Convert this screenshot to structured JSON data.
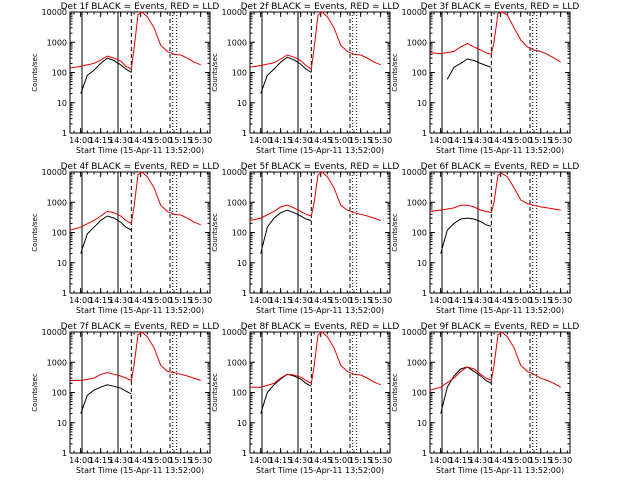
{
  "figure": {
    "x_axis_label": "Start Time (15-Apr-11 13:52:00)",
    "y_axis_label": "Counts/sec"
  },
  "chart_data": [
    {
      "type": "line",
      "title": "Det 1f BLACK = Events, RED = LLD",
      "xlabel": "Start Time (15-Apr-11 13:52:00)",
      "ylabel": "Counts/sec",
      "ylog": true,
      "xlim": [
        "13:52",
        "15:37"
      ],
      "ylim": [
        1,
        10000
      ],
      "x_ticks": [
        "14:00",
        "14:15",
        "14:30",
        "14:45",
        "15:00",
        "15:15",
        "15:30"
      ],
      "y_ticks": [
        "1",
        "10",
        "100",
        "1000",
        "10000"
      ],
      "series": [
        {
          "name": "Events",
          "color": "#000000",
          "x": [
            "14:00",
            "14:05",
            "14:10",
            "14:15",
            "14:20",
            "14:25",
            "14:30",
            "14:34",
            "14:38"
          ],
          "y": [
            20,
            80,
            120,
            200,
            300,
            250,
            180,
            130,
            100
          ]
        },
        {
          "name": "LLD",
          "color": "#e00000",
          "x": [
            "13:52",
            "14:00",
            "14:10",
            "14:15",
            "14:20",
            "14:25",
            "14:30",
            "14:34",
            "14:38",
            "14:40",
            "14:43",
            "14:46",
            "14:50",
            "14:55",
            "15:00",
            "15:05",
            "15:10",
            "15:15",
            "15:20",
            "15:25",
            "15:30"
          ],
          "y": [
            140,
            160,
            200,
            260,
            350,
            300,
            240,
            160,
            130,
            600,
            8000,
            10000,
            7000,
            3000,
            800,
            500,
            400,
            380,
            300,
            220,
            180
          ]
        }
      ]
    },
    {
      "type": "line",
      "title": "Det 2f BLACK = Events, RED = LLD",
      "xlabel": "Start Time (15-Apr-11 13:52:00)",
      "ylabel": "Counts/sec",
      "ylog": true,
      "xlim": [
        "13:52",
        "15:37"
      ],
      "ylim": [
        1,
        10000
      ],
      "x_ticks": [
        "14:00",
        "14:15",
        "14:30",
        "14:45",
        "15:00",
        "15:15",
        "15:30"
      ],
      "y_ticks": [
        "1",
        "10",
        "100",
        "1000",
        "10000"
      ],
      "series": [
        {
          "name": "Events",
          "color": "#000000",
          "x": [
            "14:00",
            "14:05",
            "14:10",
            "14:15",
            "14:20",
            "14:25",
            "14:30",
            "14:34",
            "14:38"
          ],
          "y": [
            20,
            80,
            130,
            220,
            320,
            260,
            190,
            130,
            100
          ]
        },
        {
          "name": "LLD",
          "color": "#e00000",
          "x": [
            "13:52",
            "14:00",
            "14:10",
            "14:15",
            "14:20",
            "14:25",
            "14:30",
            "14:34",
            "14:38",
            "14:40",
            "14:43",
            "14:46",
            "14:50",
            "14:55",
            "15:00",
            "15:05",
            "15:10",
            "15:15",
            "15:20",
            "15:25",
            "15:30"
          ],
          "y": [
            150,
            170,
            210,
            280,
            380,
            320,
            250,
            170,
            130,
            600,
            8000,
            10000,
            7000,
            3000,
            800,
            500,
            400,
            380,
            300,
            220,
            180
          ]
        }
      ]
    },
    {
      "type": "line",
      "title": "Det 3f BLACK = Events, RED = LLD",
      "xlabel": "Start Time (15-Apr-11 13:52:00)",
      "ylabel": "Counts/sec",
      "ylog": true,
      "xlim": [
        "13:52",
        "15:37"
      ],
      "ylim": [
        1,
        10000
      ],
      "x_ticks": [
        "14:00",
        "14:15",
        "14:30",
        "14:45",
        "15:00",
        "15:15",
        "15:30"
      ],
      "y_ticks": [
        "1",
        "10",
        "100",
        "1000",
        "10000"
      ],
      "series": [
        {
          "name": "Events",
          "color": "#000000",
          "x": [
            "14:05",
            "14:10",
            "14:15",
            "14:20",
            "14:25",
            "14:30",
            "14:34",
            "14:38"
          ],
          "y": [
            60,
            150,
            200,
            280,
            250,
            200,
            170,
            150
          ]
        },
        {
          "name": "LLD",
          "color": "#e00000",
          "x": [
            "13:52",
            "14:00",
            "14:10",
            "14:15",
            "14:20",
            "14:25",
            "14:30",
            "14:34",
            "14:38",
            "14:40",
            "14:43",
            "14:46",
            "14:50",
            "14:55",
            "15:00",
            "15:05",
            "15:10",
            "15:15",
            "15:20",
            "15:25",
            "15:30"
          ],
          "y": [
            450,
            420,
            500,
            700,
            900,
            700,
            550,
            450,
            400,
            1000,
            9000,
            10000,
            8000,
            3000,
            1200,
            700,
            550,
            500,
            400,
            300,
            220
          ]
        }
      ]
    },
    {
      "type": "line",
      "title": "Det 4f BLACK = Events, RED = LLD",
      "xlabel": "Start Time (15-Apr-11 13:52:00)",
      "ylabel": "Counts/sec",
      "ylog": true,
      "xlim": [
        "13:52",
        "15:37"
      ],
      "ylim": [
        1,
        10000
      ],
      "x_ticks": [
        "14:00",
        "14:15",
        "14:30",
        "14:45",
        "15:00",
        "15:15",
        "15:30"
      ],
      "y_ticks": [
        "1",
        "10",
        "100",
        "1000",
        "10000"
      ],
      "series": [
        {
          "name": "Events",
          "color": "#000000",
          "x": [
            "14:00",
            "14:05",
            "14:10",
            "14:15",
            "14:20",
            "14:25",
            "14:30",
            "14:34",
            "14:38"
          ],
          "y": [
            20,
            90,
            150,
            250,
            350,
            300,
            220,
            150,
            120
          ]
        },
        {
          "name": "LLD",
          "color": "#e00000",
          "x": [
            "13:52",
            "14:00",
            "14:10",
            "14:15",
            "14:20",
            "14:25",
            "14:30",
            "14:34",
            "14:38",
            "14:40",
            "14:43",
            "14:46",
            "14:50",
            "14:55",
            "15:00",
            "15:05",
            "15:10",
            "15:15",
            "15:20",
            "15:25",
            "15:30"
          ],
          "y": [
            120,
            150,
            250,
            350,
            500,
            450,
            350,
            250,
            200,
            700,
            8000,
            10000,
            7000,
            3000,
            800,
            500,
            400,
            380,
            300,
            220,
            180
          ]
        }
      ]
    },
    {
      "type": "line",
      "title": "Det 5f BLACK = Events, RED = LLD",
      "xlabel": "Start Time (15-Apr-11 13:52:00)",
      "ylabel": "Counts/sec",
      "ylog": true,
      "xlim": [
        "13:52",
        "15:37"
      ],
      "ylim": [
        1,
        10000
      ],
      "x_ticks": [
        "14:00",
        "14:15",
        "14:30",
        "14:45",
        "15:00",
        "15:15",
        "15:30"
      ],
      "y_ticks": [
        "1",
        "10",
        "100",
        "1000",
        "10000"
      ],
      "series": [
        {
          "name": "Events",
          "color": "#000000",
          "x": [
            "14:00",
            "14:05",
            "14:10",
            "14:15",
            "14:20",
            "14:25",
            "14:30",
            "14:34",
            "14:38"
          ],
          "y": [
            20,
            150,
            300,
            450,
            550,
            450,
            350,
            280,
            250
          ]
        },
        {
          "name": "LLD",
          "color": "#e00000",
          "x": [
            "13:52",
            "14:00",
            "14:10",
            "14:15",
            "14:20",
            "14:25",
            "14:30",
            "14:34",
            "14:38",
            "14:40",
            "14:43",
            "14:46",
            "14:50",
            "14:55",
            "15:00",
            "15:05",
            "15:10",
            "15:15",
            "15:20",
            "15:25",
            "15:30"
          ],
          "y": [
            250,
            300,
            500,
            700,
            800,
            650,
            500,
            400,
            350,
            900,
            8000,
            10000,
            7000,
            3000,
            800,
            550,
            450,
            400,
            350,
            300,
            250
          ]
        }
      ]
    },
    {
      "type": "line",
      "title": "Det 6f BLACK = Events, RED = LLD",
      "xlabel": "Start Time (15-Apr-11 13:52:00)",
      "ylabel": "Counts/sec",
      "ylog": true,
      "xlim": [
        "13:52",
        "15:37"
      ],
      "ylim": [
        1,
        10000
      ],
      "x_ticks": [
        "14:00",
        "14:15",
        "14:30",
        "14:45",
        "15:00",
        "15:15",
        "15:30"
      ],
      "y_ticks": [
        "1",
        "10",
        "100",
        "1000",
        "10000"
      ],
      "series": [
        {
          "name": "Events",
          "color": "#000000",
          "x": [
            "14:00",
            "14:05",
            "14:10",
            "14:15",
            "14:20",
            "14:25",
            "14:30",
            "14:34",
            "14:38"
          ],
          "y": [
            20,
            120,
            200,
            280,
            300,
            280,
            230,
            180,
            160
          ]
        },
        {
          "name": "LLD",
          "color": "#e00000",
          "x": [
            "13:52",
            "14:00",
            "14:10",
            "14:15",
            "14:20",
            "14:25",
            "14:30",
            "14:34",
            "14:38",
            "14:40",
            "14:43",
            "14:46",
            "14:50",
            "14:55",
            "15:00",
            "15:05",
            "15:10",
            "15:15",
            "15:20",
            "15:25",
            "15:30"
          ],
          "y": [
            500,
            550,
            650,
            800,
            800,
            700,
            550,
            500,
            450,
            1000,
            8000,
            9000,
            7000,
            3000,
            1200,
            900,
            800,
            700,
            650,
            600,
            550
          ]
        }
      ]
    },
    {
      "type": "line",
      "title": "Det 7f BLACK = Events, RED = LLD",
      "xlabel": "Start Time (15-Apr-11 13:52:00)",
      "ylabel": "Counts/sec",
      "ylog": true,
      "xlim": [
        "13:52",
        "15:37"
      ],
      "ylim": [
        1,
        10000
      ],
      "x_ticks": [
        "14:00",
        "14:15",
        "14:30",
        "14:45",
        "15:00",
        "15:15",
        "15:30"
      ],
      "y_ticks": [
        "1",
        "10",
        "100",
        "1000",
        "10000"
      ],
      "series": [
        {
          "name": "Events",
          "color": "#000000",
          "x": [
            "14:00",
            "14:05",
            "14:10",
            "14:15",
            "14:20",
            "14:25",
            "14:30",
            "14:34",
            "14:38"
          ],
          "y": [
            20,
            80,
            120,
            150,
            180,
            160,
            140,
            110,
            90
          ]
        },
        {
          "name": "LLD",
          "color": "#e00000",
          "x": [
            "13:52",
            "14:00",
            "14:10",
            "14:15",
            "14:20",
            "14:25",
            "14:30",
            "14:34",
            "14:38",
            "14:40",
            "14:43",
            "14:46",
            "14:50",
            "14:55",
            "15:00",
            "15:05",
            "15:10",
            "15:15",
            "15:20",
            "15:25",
            "15:30"
          ],
          "y": [
            250,
            250,
            300,
            400,
            450,
            400,
            350,
            300,
            250,
            800,
            8000,
            10000,
            7000,
            3000,
            800,
            500,
            450,
            400,
            350,
            300,
            250
          ]
        }
      ]
    },
    {
      "type": "line",
      "title": "Det 8f BLACK = Events, RED = LLD",
      "xlabel": "Start Time (15-Apr-11 13:52:00)",
      "ylabel": "Counts/sec",
      "ylog": true,
      "xlim": [
        "13:52",
        "15:37"
      ],
      "ylim": [
        1,
        10000
      ],
      "x_ticks": [
        "14:00",
        "14:15",
        "14:30",
        "14:45",
        "15:00",
        "15:15",
        "15:30"
      ],
      "y_ticks": [
        "1",
        "10",
        "100",
        "1000",
        "10000"
      ],
      "series": [
        {
          "name": "Events",
          "color": "#000000",
          "x": [
            "14:00",
            "14:05",
            "14:10",
            "14:15",
            "14:20",
            "14:25",
            "14:30",
            "14:34",
            "14:38"
          ],
          "y": [
            20,
            100,
            180,
            280,
            400,
            350,
            280,
            200,
            160
          ]
        },
        {
          "name": "LLD",
          "color": "#e00000",
          "x": [
            "13:52",
            "14:00",
            "14:10",
            "14:15",
            "14:20",
            "14:25",
            "14:30",
            "14:34",
            "14:38",
            "14:40",
            "14:43",
            "14:46",
            "14:50",
            "14:55",
            "15:00",
            "15:05",
            "15:10",
            "15:15",
            "15:20",
            "15:25",
            "15:30"
          ],
          "y": [
            150,
            150,
            200,
            300,
            400,
            380,
            320,
            250,
            200,
            700,
            8000,
            10000,
            7000,
            3000,
            800,
            500,
            400,
            380,
            300,
            220,
            180
          ]
        }
      ]
    },
    {
      "type": "line",
      "title": "Det 9f BLACK = Events, RED = LLD",
      "xlabel": "Start Time (15-Apr-11 13:52:00)",
      "ylabel": "Counts/sec",
      "ylog": true,
      "xlim": [
        "13:52",
        "15:37"
      ],
      "ylim": [
        1,
        10000
      ],
      "x_ticks": [
        "14:00",
        "14:15",
        "14:30",
        "14:45",
        "15:00",
        "15:15",
        "15:30"
      ],
      "y_ticks": [
        "1",
        "10",
        "100",
        "1000",
        "10000"
      ],
      "series": [
        {
          "name": "Events",
          "color": "#000000",
          "x": [
            "14:00",
            "14:05",
            "14:10",
            "14:15",
            "14:20",
            "14:25",
            "14:30",
            "14:34",
            "14:38"
          ],
          "y": [
            20,
            150,
            350,
            600,
            700,
            500,
            350,
            250,
            200
          ]
        },
        {
          "name": "LLD",
          "color": "#e00000",
          "x": [
            "13:52",
            "14:00",
            "14:10",
            "14:15",
            "14:20",
            "14:25",
            "14:30",
            "14:34",
            "14:38",
            "14:40",
            "14:43",
            "14:46",
            "14:50",
            "14:55",
            "15:00",
            "15:05",
            "15:10",
            "15:15",
            "15:20",
            "15:25",
            "15:30"
          ],
          "y": [
            120,
            150,
            300,
            500,
            700,
            600,
            400,
            300,
            250,
            800,
            8000,
            10000,
            7000,
            3000,
            800,
            500,
            400,
            300,
            250,
            200,
            150
          ]
        }
      ]
    }
  ]
}
